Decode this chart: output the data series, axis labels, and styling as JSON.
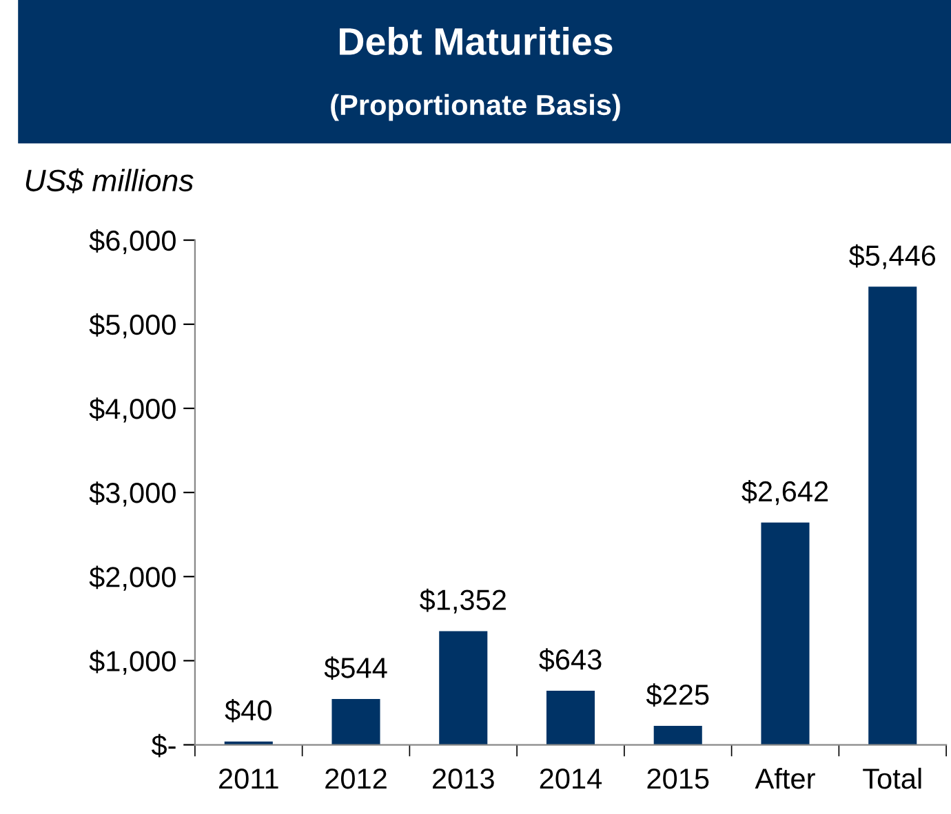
{
  "chart_data": {
    "type": "bar",
    "title": "Debt Maturities",
    "subtitle": "(Proportionate Basis)",
    "ylabel": "US$ millions",
    "categories": [
      "2011",
      "2012",
      "2013",
      "2014",
      "2015",
      "After",
      "Total"
    ],
    "values": [
      40,
      544,
      1352,
      643,
      225,
      2642,
      5446
    ],
    "value_labels": [
      "$40",
      "$544",
      "$1,352",
      "$643",
      "$225",
      "$2,642",
      "$5,446"
    ],
    "color": "#003366",
    "ylim": [
      0,
      6000
    ],
    "yticks": [
      {
        "value": 0,
        "label": "$-"
      },
      {
        "value": 1000,
        "label": "$1,000"
      },
      {
        "value": 2000,
        "label": "$2,000"
      },
      {
        "value": 3000,
        "label": "$3,000"
      },
      {
        "value": 4000,
        "label": "$4,000"
      },
      {
        "value": 5000,
        "label": "$5,000"
      },
      {
        "value": 6000,
        "label": "$6,000"
      }
    ],
    "grid": false,
    "legend": false
  }
}
